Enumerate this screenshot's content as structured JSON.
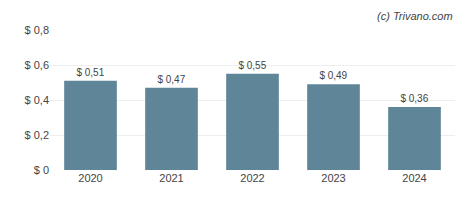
{
  "chart_data": {
    "type": "bar",
    "categories": [
      "2020",
      "2021",
      "2022",
      "2023",
      "2024"
    ],
    "values": [
      0.51,
      0.47,
      0.55,
      0.49,
      0.36
    ],
    "value_labels": [
      "$ 0,51",
      "$ 0,47",
      "$ 0,55",
      "$ 0,49",
      "$ 0,36"
    ],
    "data_labels": true,
    "color": "#5f8599",
    "ylim": [
      0,
      0.8
    ],
    "yticks": [
      {
        "value": 0,
        "label": "$ 0"
      },
      {
        "value": 0.2,
        "label": "$ 0,2"
      },
      {
        "value": 0.4,
        "label": "$ 0,4"
      },
      {
        "value": 0.6,
        "label": "$ 0,6"
      },
      {
        "value": 0.8,
        "label": "$ 0,8"
      }
    ],
    "grid": true,
    "annotations": [
      "(c) Trivano.com"
    ]
  }
}
